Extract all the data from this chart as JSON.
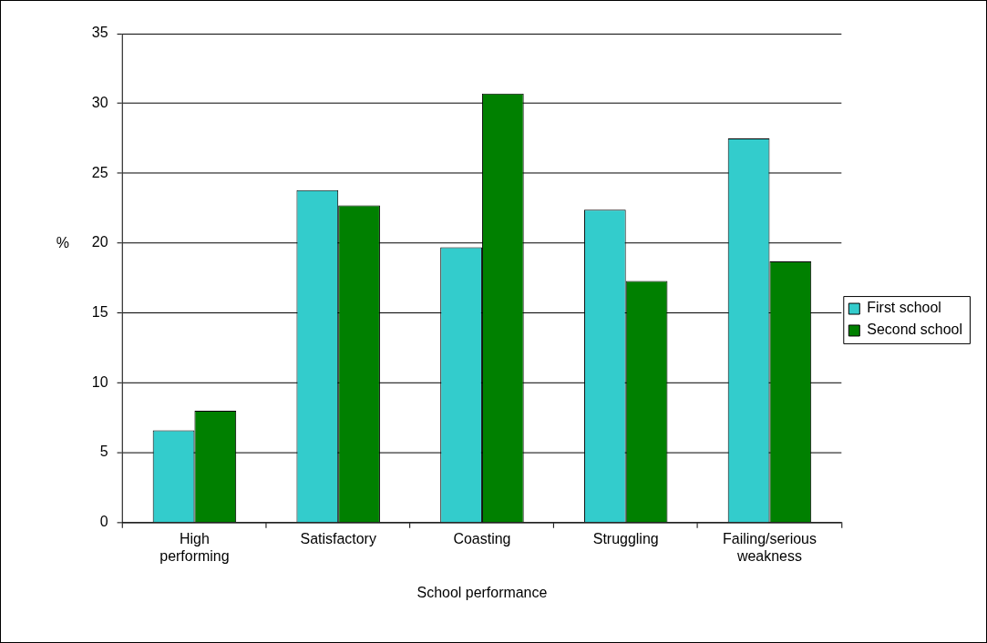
{
  "chart_data": {
    "type": "bar",
    "xlabel": "School performance",
    "ylabel": "%",
    "categories": [
      "High performing",
      "Satisfactory",
      "Coasting",
      "Struggling",
      "Failing/serious weakness"
    ],
    "series": [
      {
        "name": "First school",
        "color": "#33cccc",
        "values": [
          6.6,
          23.8,
          19.7,
          22.4,
          27.5
        ]
      },
      {
        "name": "Second school",
        "color": "#008000",
        "values": [
          8.0,
          22.7,
          30.7,
          17.3,
          18.7
        ]
      }
    ],
    "ylim": [
      0,
      35
    ],
    "yticks": [
      0,
      5,
      10,
      15,
      20,
      25,
      30,
      35
    ],
    "grid": "y",
    "legend": "right"
  }
}
